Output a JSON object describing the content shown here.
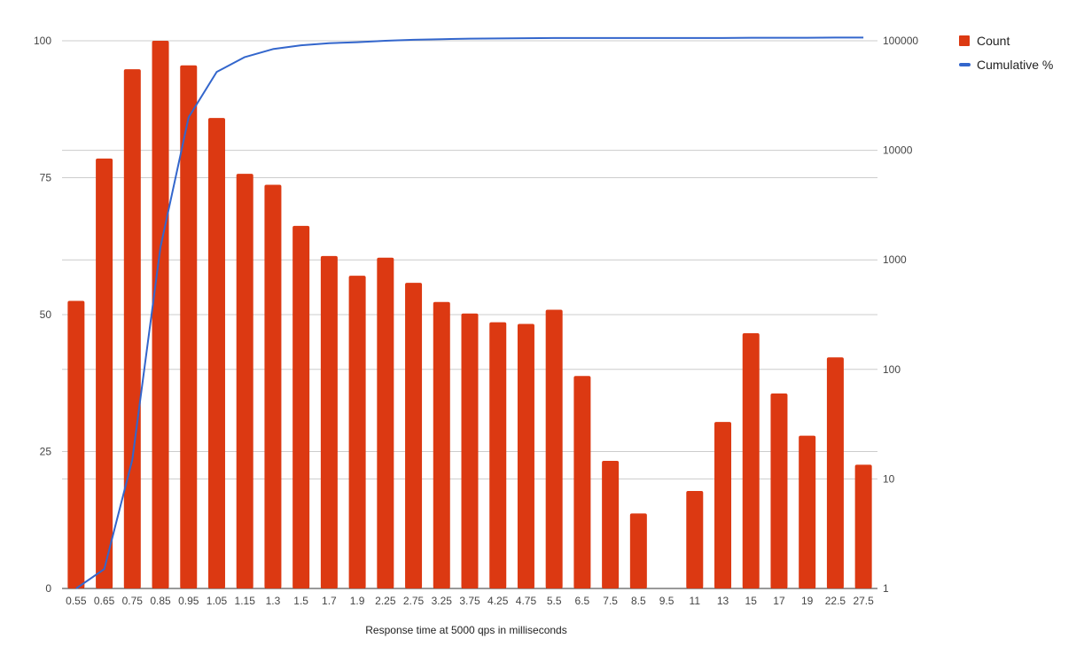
{
  "chart_data": {
    "type": "bar",
    "categories": [
      "0.55",
      "0.65",
      "0.75",
      "0.85",
      "0.95",
      "1.05",
      "1.15",
      "1.3",
      "1.5",
      "1.7",
      "1.9",
      "2.25",
      "2.75",
      "3.25",
      "3.75",
      "4.25",
      "4.75",
      "5.5",
      "6.5",
      "7.5",
      "8.5",
      "9.5",
      "11",
      "13",
      "15",
      "17",
      "19",
      "22.5",
      "27.5"
    ],
    "series": [
      {
        "name": "Count",
        "kind": "bar",
        "axis": "left",
        "color": "#dc3912",
        "values": [
          52.5,
          78.5,
          94.8,
          100,
          95.5,
          85.9,
          75.7,
          73.7,
          66.2,
          60.7,
          57.1,
          60.4,
          55.8,
          52.3,
          50.2,
          48.6,
          48.3,
          50.9,
          38.8,
          23.3,
          13.7,
          0,
          17.8,
          30.4,
          46.6,
          35.6,
          27.9,
          42.2,
          22.6
        ]
      },
      {
        "name": "Cumulative %",
        "kind": "line",
        "axis": "right",
        "color": "#3366cc",
        "values": [
          1,
          1.5,
          15,
          1300,
          20000,
          52000,
          71000,
          84000,
          91000,
          95000,
          97000,
          100000,
          102000,
          103500,
          104500,
          105000,
          105500,
          106000,
          106000,
          106000,
          106000,
          106000,
          106000,
          106000,
          106500,
          106500,
          106500,
          107000,
          107000
        ]
      }
    ],
    "xlabel": "Response time at 5000 qps in milliseconds",
    "ylim_left": [
      0,
      100
    ],
    "yticks_left": [
      "0",
      "25",
      "50",
      "75",
      "100"
    ],
    "yscale_right": "log",
    "ylim_right": [
      1,
      100000
    ],
    "yticks_right": [
      "1",
      "10",
      "100",
      "1000",
      "10000",
      "100000"
    ],
    "legend_position": "top-right",
    "grid": true
  }
}
